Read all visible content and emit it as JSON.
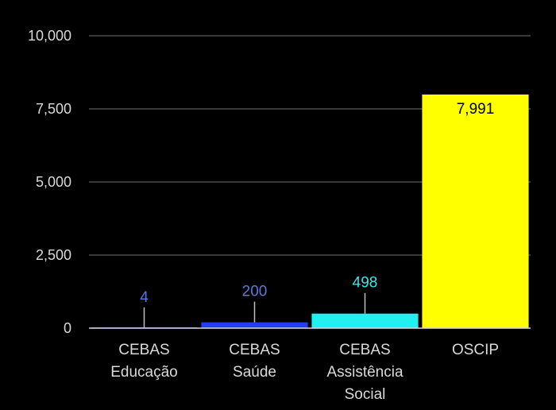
{
  "chart_data": {
    "type": "bar",
    "categories": [
      [
        "CEBAS",
        "Educação"
      ],
      [
        "CEBAS",
        "Saúde"
      ],
      [
        "CEBAS",
        "Assistência",
        "Social"
      ],
      [
        "OSCIP"
      ]
    ],
    "values": [
      4,
      200,
      498,
      7991
    ],
    "data_labels": [
      "4",
      "200",
      "498",
      "7,991"
    ],
    "colors": [
      "#4f6ddb",
      "#1f3ff0",
      "#22f0f0",
      "#ffff00"
    ],
    "label_colors": [
      "#5a78e0",
      "#5a78e0",
      "#35e8e8",
      "#000000"
    ],
    "ylim": [
      0,
      10000
    ],
    "yticks": [
      0,
      2500,
      5000,
      7500,
      10000
    ],
    "ytick_labels": [
      "0",
      "2,500",
      "5,000",
      "7,500",
      "10,000"
    ],
    "grid": true,
    "background": "#000000",
    "gridline_color": "#4d4d4d",
    "title": "",
    "xlabel": "",
    "ylabel": ""
  }
}
